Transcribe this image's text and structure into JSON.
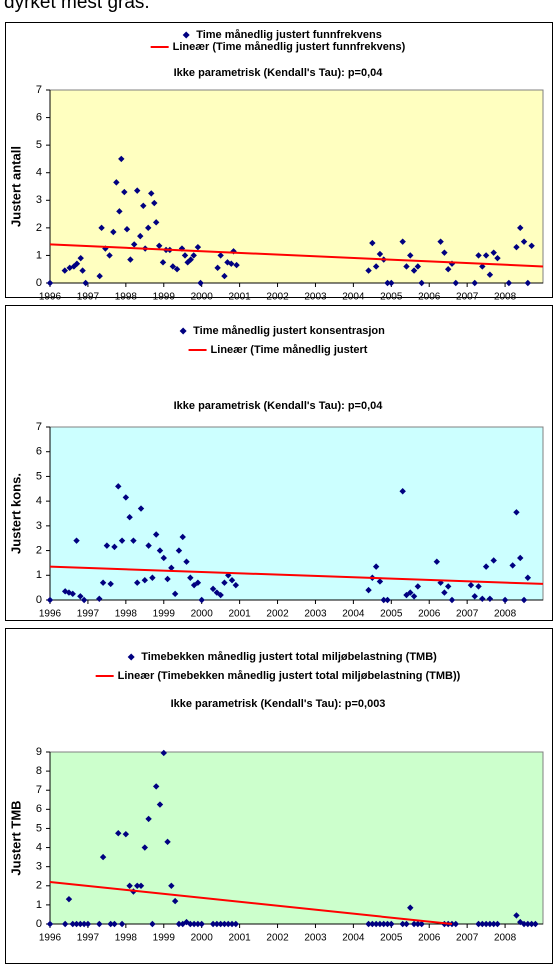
{
  "intro_text": "dyrket mest gras.",
  "chart_data": [
    {
      "type": "scatter",
      "title": "Ikke parametrisk (Kendall's Tau): p=0,04",
      "y_label": "Justert antall",
      "plot_color": "#ffffc0",
      "xlim": [
        1996,
        2009
      ],
      "xticks": [
        1996,
        1997,
        1998,
        1999,
        2000,
        2001,
        2002,
        2003,
        2004,
        2005,
        2006,
        2007,
        2008
      ],
      "ylim": [
        0,
        7
      ],
      "yticks": [
        0,
        1,
        2,
        3,
        4,
        5,
        6,
        7
      ],
      "series": [
        {
          "name": "Time månedlig justert funnfrekvens",
          "color": "#000080",
          "x": [
            1996,
            1996.39,
            1996.52,
            1996.63,
            1996.71,
            1996.81,
            1996.86,
            1996.94,
            1997.31,
            1997.36,
            1997.46,
            1997.57,
            1997.67,
            1997.75,
            1997.83,
            1997.88,
            1997.96,
            1998.03,
            1998.12,
            1998.22,
            1998.3,
            1998.38,
            1998.46,
            1998.51,
            1998.59,
            1998.67,
            1998.75,
            1998.8,
            1998.88,
            1998.98,
            1999.06,
            1999.16,
            1999.24,
            1999.35,
            1999.48,
            1999.56,
            1999.63,
            1999.71,
            1999.79,
            1999.9,
            1999.97,
            2000.42,
            2000.5,
            2000.6,
            2000.68,
            2000.78,
            2000.84,
            2000.92,
            2004.4,
            2004.5,
            2004.6,
            2004.7,
            2004.8,
            2004.9,
            2005.0,
            2005.3,
            2005.4,
            2005.5,
            2005.6,
            2005.7,
            2005.8,
            2006.3,
            2006.4,
            2006.5,
            2006.6,
            2006.7,
            2007.2,
            2007.3,
            2007.4,
            2007.5,
            2007.6,
            2007.7,
            2007.8,
            2008.1,
            2008.3,
            2008.4,
            2008.5,
            2008.6,
            2008.7
          ],
          "values": [
            0,
            0.45,
            0.55,
            0.6,
            0.7,
            0.9,
            0.45,
            0,
            0.25,
            2.0,
            1.25,
            1.0,
            1.85,
            3.65,
            2.6,
            4.5,
            3.3,
            1.95,
            0.85,
            1.4,
            3.35,
            1.7,
            2.8,
            1.25,
            2.0,
            3.25,
            2.9,
            2.2,
            1.35,
            0.75,
            1.2,
            1.2,
            0.6,
            0.5,
            1.25,
            1.0,
            0.75,
            0.85,
            1.0,
            1.3,
            0,
            0.55,
            1.0,
            0.25,
            0.75,
            0.7,
            1.15,
            0.65,
            0.45,
            1.45,
            0.6,
            1.05,
            0.85,
            0,
            0,
            1.5,
            0.6,
            1.0,
            0.45,
            0.6,
            0,
            1.5,
            1.1,
            0.5,
            0.7,
            0,
            0,
            1.0,
            0.6,
            1.0,
            0.3,
            1.1,
            0.9,
            0,
            1.3,
            2.0,
            1.5,
            0,
            1.35
          ]
        },
        {
          "name": "Lineær (Time månedlig justert funnfrekvens)",
          "color": "#ff0000",
          "type": "line",
          "x": [
            1996,
            2009
          ],
          "values": [
            1.4,
            0.6
          ]
        }
      ]
    },
    {
      "type": "scatter",
      "title": "Ikke parametrisk (Kendall's Tau): p=0,04",
      "y_label": "Justert kons.",
      "plot_color": "#ccffff",
      "xlim": [
        1996,
        2009
      ],
      "xticks": [
        1996,
        1997,
        1998,
        1999,
        2000,
        2001,
        2002,
        2003,
        2004,
        2005,
        2006,
        2007,
        2008
      ],
      "ylim": [
        0,
        7
      ],
      "yticks": [
        0,
        1,
        2,
        3,
        4,
        5,
        6,
        7
      ],
      "series": [
        {
          "name": "Time månedlig justert konsentrasjon",
          "color": "#000080",
          "x": [
            1996,
            1996.4,
            1996.5,
            1996.6,
            1996.7,
            1996.8,
            1996.9,
            1997.3,
            1997.4,
            1997.5,
            1997.6,
            1997.7,
            1997.8,
            1997.9,
            1998.0,
            1998.1,
            1998.2,
            1998.3,
            1998.4,
            1998.5,
            1998.6,
            1998.7,
            1998.8,
            1998.9,
            1999.0,
            1999.1,
            1999.2,
            1999.3,
            1999.4,
            1999.5,
            1999.6,
            1999.7,
            1999.8,
            1999.9,
            2000.0,
            2000.3,
            2000.4,
            2000.5,
            2000.6,
            2000.7,
            2000.8,
            2000.9,
            2004.4,
            2004.5,
            2004.6,
            2004.7,
            2004.8,
            2004.9,
            2005.3,
            2005.4,
            2005.5,
            2005.6,
            2005.7,
            2006.2,
            2006.3,
            2006.4,
            2006.5,
            2006.6,
            2007.1,
            2007.2,
            2007.3,
            2007.4,
            2007.5,
            2007.6,
            2007.7,
            2008.0,
            2008.2,
            2008.3,
            2008.4,
            2008.5,
            2008.6
          ],
          "values": [
            0,
            0.35,
            0.3,
            0.25,
            2.4,
            0.15,
            0,
            0.05,
            0.7,
            2.2,
            0.65,
            2.15,
            4.6,
            2.4,
            4.15,
            3.35,
            2.4,
            0.7,
            3.7,
            0.8,
            2.2,
            0.9,
            2.65,
            2.0,
            1.7,
            0.85,
            1.3,
            0.25,
            2.0,
            2.55,
            1.55,
            0.9,
            0.6,
            0.7,
            0,
            0.45,
            0.3,
            0.2,
            0.7,
            1.0,
            0.8,
            0.6,
            0.4,
            0.9,
            1.35,
            0.75,
            0,
            0,
            4.4,
            0.2,
            0.3,
            0.15,
            0.55,
            1.55,
            0.7,
            0.3,
            0.55,
            0,
            0.6,
            0.15,
            0.55,
            0.05,
            1.35,
            0.05,
            1.6,
            0,
            1.4,
            3.55,
            1.7,
            0,
            0.9
          ]
        },
        {
          "name": "Lineær (Time månedlig justert",
          "color": "#ff0000",
          "type": "line",
          "x": [
            1996,
            2009
          ],
          "values": [
            1.35,
            0.65
          ]
        }
      ]
    },
    {
      "type": "scatter",
      "title": "Ikke parametrisk (Kendall's Tau): p=0,003",
      "y_label": "Justert TMB",
      "plot_color": "#ccffcc",
      "xlim": [
        1996,
        2009
      ],
      "xticks": [
        1996,
        1997,
        1998,
        1999,
        2000,
        2001,
        2002,
        2003,
        2004,
        2005,
        2006,
        2007,
        2008
      ],
      "ylim": [
        0,
        9
      ],
      "yticks": [
        0,
        1,
        2,
        3,
        4,
        5,
        6,
        7,
        8,
        9
      ],
      "series": [
        {
          "name": "Timebekken månedlig justert total miljøbelastning (TMB)",
          "color": "#000080",
          "x": [
            1996,
            1996.4,
            1996.5,
            1996.6,
            1996.7,
            1996.8,
            1996.9,
            1997.0,
            1997.3,
            1997.4,
            1997.6,
            1997.7,
            1997.8,
            1997.9,
            1998.0,
            1998.1,
            1998.2,
            1998.3,
            1998.4,
            1998.5,
            1998.6,
            1998.7,
            1998.8,
            1998.9,
            1999.0,
            1999.1,
            1999.2,
            1999.3,
            1999.4,
            1999.5,
            1999.6,
            1999.7,
            1999.8,
            1999.9,
            2000.0,
            2000.3,
            2000.4,
            2000.5,
            2000.6,
            2000.7,
            2000.8,
            2000.9,
            2004.4,
            2004.5,
            2004.6,
            2004.7,
            2004.8,
            2004.9,
            2005.0,
            2005.3,
            2005.4,
            2005.5,
            2005.6,
            2005.7,
            2005.8,
            2006.4,
            2006.5,
            2006.6,
            2006.7,
            2007.3,
            2007.4,
            2007.5,
            2007.6,
            2007.7,
            2007.8,
            2008.3,
            2008.4,
            2008.5,
            2008.6,
            2008.7,
            2008.8
          ],
          "values": [
            0,
            0,
            1.3,
            0,
            0,
            0,
            0,
            0,
            0,
            3.5,
            0,
            0,
            4.75,
            0,
            4.7,
            2.0,
            1.7,
            2.0,
            2.0,
            4.0,
            5.5,
            0,
            7.2,
            6.25,
            8.95,
            4.3,
            2.0,
            1.2,
            0,
            0,
            0.1,
            0,
            0,
            0,
            0,
            0,
            0,
            0,
            0,
            0,
            0,
            0,
            0,
            0,
            0,
            0,
            0,
            0,
            0,
            0,
            0,
            0.85,
            0,
            0,
            0,
            0,
            0,
            0,
            0,
            0,
            0,
            0,
            0,
            0,
            0,
            0.45,
            0.1,
            0,
            0,
            0,
            0
          ]
        },
        {
          "name": "Lineær (Timebekken månedlig justert total miljøbelastning (TMB))",
          "color": "#ff0000",
          "type": "line",
          "x": [
            1996,
            2006.6
          ],
          "values": [
            2.2,
            0
          ]
        }
      ]
    }
  ]
}
